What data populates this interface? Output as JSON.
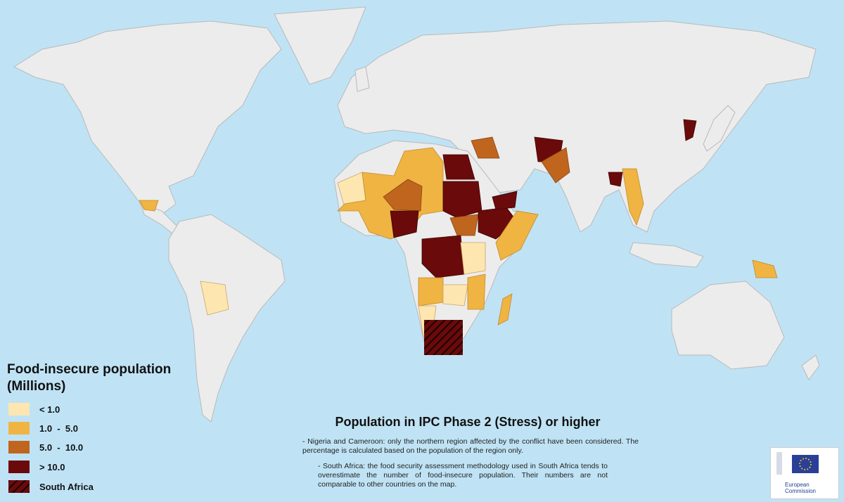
{
  "legend": {
    "title": "Food-insecure population",
    "unit": "(Millions)",
    "items": [
      "< 1.0",
      "1.0  -  5.0",
      "5.0  -  10.0",
      "> 10.0",
      "South Africa"
    ]
  },
  "title": "Population in IPC Phase 2 (Stress) or higher",
  "notes": [
    "- Nigeria and Cameroon: only the northern region affected by the conflict have been considered. The percentage is calculated based on the population of the region only.",
    "- South Africa: the food security assessment methodology used in South Africa tends to overestimate the number of food-insecure population. Their numbers are not comparable to other countries on the map."
  ],
  "logo": {
    "text": "European Commission"
  }
}
